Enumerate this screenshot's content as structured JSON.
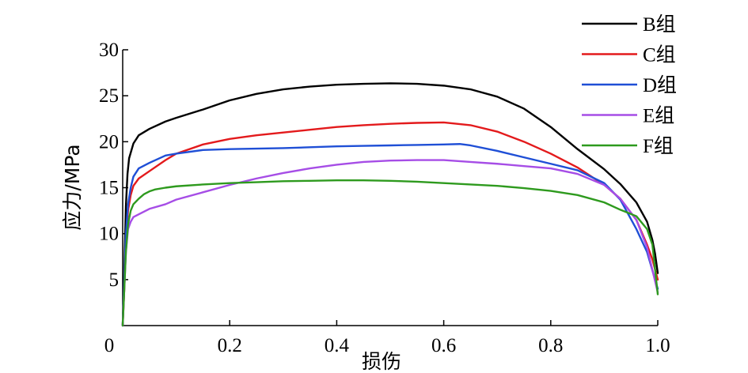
{
  "chart_data": {
    "type": "line",
    "title": "",
    "xlabel": "损伤",
    "ylabel": "应力/MPa",
    "xlim": [
      0,
      1.0
    ],
    "ylim": [
      0,
      30
    ],
    "xticks": [
      0,
      0.2,
      0.4,
      0.6,
      0.8,
      1.0
    ],
    "xtick_labels": [
      "0",
      "0.2",
      "0.4",
      "0.6",
      "0.8",
      "1.0"
    ],
    "yticks": [
      5,
      10,
      15,
      20,
      25,
      30
    ],
    "ytick_labels": [
      "5",
      "10",
      "15",
      "20",
      "25",
      "30"
    ],
    "grid": false,
    "legend_position": "top-right",
    "series": [
      {
        "name": "B组",
        "color": "#000000",
        "points": [
          [
            0.0,
            0
          ],
          [
            0.003,
            6
          ],
          [
            0.006,
            13
          ],
          [
            0.009,
            16.5
          ],
          [
            0.012,
            18.2
          ],
          [
            0.02,
            19.8
          ],
          [
            0.03,
            20.7
          ],
          [
            0.05,
            21.4
          ],
          [
            0.08,
            22.2
          ],
          [
            0.1,
            22.6
          ],
          [
            0.15,
            23.5
          ],
          [
            0.2,
            24.5
          ],
          [
            0.25,
            25.2
          ],
          [
            0.3,
            25.7
          ],
          [
            0.35,
            26.0
          ],
          [
            0.4,
            26.2
          ],
          [
            0.45,
            26.3
          ],
          [
            0.5,
            26.35
          ],
          [
            0.55,
            26.3
          ],
          [
            0.6,
            26.1
          ],
          [
            0.65,
            25.7
          ],
          [
            0.7,
            24.9
          ],
          [
            0.75,
            23.6
          ],
          [
            0.8,
            21.6
          ],
          [
            0.85,
            19.2
          ],
          [
            0.9,
            17.0
          ],
          [
            0.93,
            15.4
          ],
          [
            0.96,
            13.4
          ],
          [
            0.98,
            11.3
          ],
          [
            0.99,
            9.3
          ],
          [
            0.995,
            7.8
          ],
          [
            1.0,
            5.7
          ]
        ]
      },
      {
        "name": "C组",
        "color": "#e31a1c",
        "points": [
          [
            0.0,
            0
          ],
          [
            0.003,
            4
          ],
          [
            0.006,
            9
          ],
          [
            0.01,
            12.5
          ],
          [
            0.015,
            14.2
          ],
          [
            0.02,
            15.2
          ],
          [
            0.03,
            16.0
          ],
          [
            0.05,
            16.8
          ],
          [
            0.08,
            18.0
          ],
          [
            0.1,
            18.7
          ],
          [
            0.15,
            19.7
          ],
          [
            0.2,
            20.3
          ],
          [
            0.25,
            20.7
          ],
          [
            0.3,
            21.0
          ],
          [
            0.35,
            21.3
          ],
          [
            0.4,
            21.6
          ],
          [
            0.45,
            21.8
          ],
          [
            0.5,
            21.95
          ],
          [
            0.55,
            22.05
          ],
          [
            0.6,
            22.1
          ],
          [
            0.65,
            21.8
          ],
          [
            0.7,
            21.1
          ],
          [
            0.75,
            20.0
          ],
          [
            0.8,
            18.7
          ],
          [
            0.85,
            17.2
          ],
          [
            0.9,
            15.3
          ],
          [
            0.93,
            13.8
          ],
          [
            0.96,
            11.5
          ],
          [
            0.98,
            8.8
          ],
          [
            0.99,
            7.2
          ],
          [
            1.0,
            5.0
          ]
        ]
      },
      {
        "name": "D组",
        "color": "#1f4fd6",
        "points": [
          [
            0.0,
            0
          ],
          [
            0.003,
            5
          ],
          [
            0.006,
            10
          ],
          [
            0.01,
            13.2
          ],
          [
            0.015,
            15.0
          ],
          [
            0.02,
            16.2
          ],
          [
            0.03,
            17.1
          ],
          [
            0.05,
            17.7
          ],
          [
            0.08,
            18.5
          ],
          [
            0.1,
            18.7
          ],
          [
            0.15,
            19.1
          ],
          [
            0.2,
            19.2
          ],
          [
            0.25,
            19.25
          ],
          [
            0.3,
            19.3
          ],
          [
            0.35,
            19.4
          ],
          [
            0.4,
            19.5
          ],
          [
            0.45,
            19.55
          ],
          [
            0.5,
            19.6
          ],
          [
            0.55,
            19.65
          ],
          [
            0.6,
            19.7
          ],
          [
            0.63,
            19.75
          ],
          [
            0.65,
            19.6
          ],
          [
            0.7,
            19.0
          ],
          [
            0.75,
            18.3
          ],
          [
            0.8,
            17.6
          ],
          [
            0.85,
            16.9
          ],
          [
            0.9,
            15.5
          ],
          [
            0.93,
            13.7
          ],
          [
            0.96,
            10.5
          ],
          [
            0.98,
            8.0
          ],
          [
            1.0,
            4.0
          ]
        ]
      },
      {
        "name": "E组",
        "color": "#a64de6",
        "points": [
          [
            0.0,
            0
          ],
          [
            0.003,
            4
          ],
          [
            0.006,
            8
          ],
          [
            0.01,
            10.5
          ],
          [
            0.015,
            11.3
          ],
          [
            0.02,
            11.8
          ],
          [
            0.03,
            12.1
          ],
          [
            0.05,
            12.7
          ],
          [
            0.08,
            13.2
          ],
          [
            0.1,
            13.7
          ],
          [
            0.15,
            14.5
          ],
          [
            0.2,
            15.3
          ],
          [
            0.25,
            16.0
          ],
          [
            0.3,
            16.6
          ],
          [
            0.35,
            17.1
          ],
          [
            0.4,
            17.5
          ],
          [
            0.45,
            17.8
          ],
          [
            0.5,
            17.95
          ],
          [
            0.55,
            18.0
          ],
          [
            0.6,
            18.0
          ],
          [
            0.65,
            17.8
          ],
          [
            0.7,
            17.6
          ],
          [
            0.75,
            17.35
          ],
          [
            0.8,
            17.1
          ],
          [
            0.85,
            16.5
          ],
          [
            0.9,
            15.3
          ],
          [
            0.93,
            13.8
          ],
          [
            0.96,
            11.5
          ],
          [
            0.98,
            8.5
          ],
          [
            1.0,
            3.6
          ]
        ]
      },
      {
        "name": "F组",
        "color": "#2e9a1e",
        "points": [
          [
            0.0,
            0
          ],
          [
            0.003,
            4
          ],
          [
            0.006,
            8
          ],
          [
            0.01,
            11
          ],
          [
            0.015,
            12.5
          ],
          [
            0.02,
            13.2
          ],
          [
            0.03,
            13.8
          ],
          [
            0.04,
            14.3
          ],
          [
            0.05,
            14.6
          ],
          [
            0.06,
            14.8
          ],
          [
            0.08,
            15.0
          ],
          [
            0.1,
            15.15
          ],
          [
            0.15,
            15.35
          ],
          [
            0.2,
            15.5
          ],
          [
            0.25,
            15.6
          ],
          [
            0.3,
            15.7
          ],
          [
            0.35,
            15.75
          ],
          [
            0.4,
            15.8
          ],
          [
            0.45,
            15.8
          ],
          [
            0.5,
            15.75
          ],
          [
            0.55,
            15.65
          ],
          [
            0.6,
            15.5
          ],
          [
            0.65,
            15.35
          ],
          [
            0.7,
            15.2
          ],
          [
            0.75,
            14.95
          ],
          [
            0.8,
            14.65
          ],
          [
            0.85,
            14.2
          ],
          [
            0.9,
            13.4
          ],
          [
            0.93,
            12.6
          ],
          [
            0.96,
            11.9
          ],
          [
            0.98,
            10.5
          ],
          [
            0.99,
            8.8
          ],
          [
            1.0,
            3.4
          ]
        ]
      }
    ]
  }
}
